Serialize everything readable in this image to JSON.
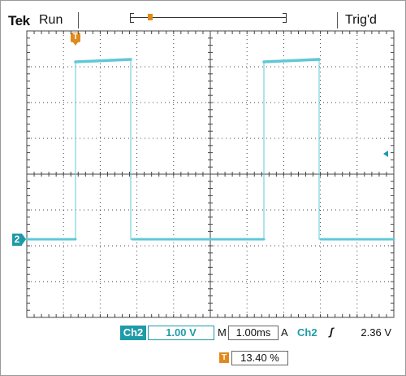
{
  "header": {
    "brand": "Tek",
    "run_state": "Run",
    "trigger_state": "Trig'd",
    "record_window_marker": "T"
  },
  "trigger_position_marker": "T",
  "channel_marker": "2",
  "status": {
    "channel": "Ch2",
    "volts_per_div": "1.00 V",
    "timebase_prefix": "M",
    "time_per_div": "1.00ms",
    "trigger_mode": "A",
    "trigger_channel": "Ch2",
    "trigger_slope": "ʃ",
    "trigger_level": "2.36 V"
  },
  "trigger_horizontal_position": {
    "marker": "T",
    "value": "13.40 %"
  },
  "colors": {
    "trace": "#5fc8d6",
    "channel_accent": "#1f9ba8",
    "trigger_accent": "#e08a1e",
    "grid": "#444444"
  },
  "icons": [
    "trigger-position-icon",
    "channel-ground-marker-icon",
    "trigger-level-icon",
    "rising-edge-slope-icon"
  ]
}
